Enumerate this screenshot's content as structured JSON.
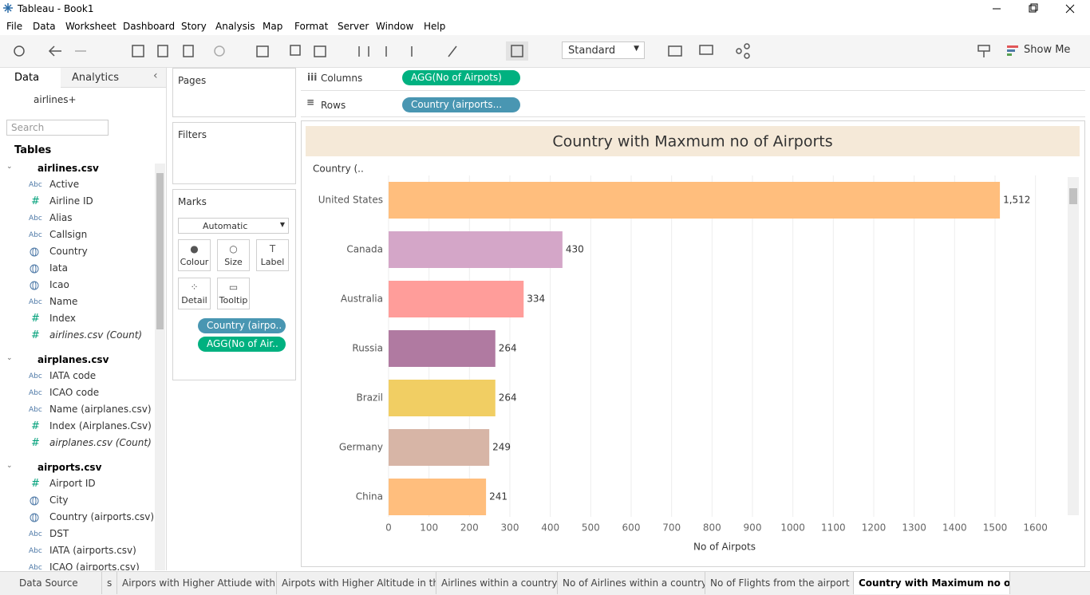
{
  "window": {
    "title": "Tableau - Book1"
  },
  "menu": [
    "File",
    "Data",
    "Worksheet",
    "Dashboard",
    "Story",
    "Analysis",
    "Map",
    "Format",
    "Server",
    "Window",
    "Help"
  ],
  "toolbar": {
    "fit": "Standard",
    "show_me": "Show Me"
  },
  "data_pane": {
    "tabs": [
      "Data",
      "Analytics"
    ],
    "source": "airlines+",
    "search_placeholder": "Search",
    "tables_heading": "Tables",
    "tables": [
      {
        "name": "airlines.csv",
        "fields": [
          {
            "icon": "Abc",
            "name": "Active"
          },
          {
            "icon": "#",
            "name": "Airline ID"
          },
          {
            "icon": "Abc",
            "name": "Alias"
          },
          {
            "icon": "Abc",
            "name": "Callsign"
          },
          {
            "name": "Country"
          },
          {
            "name": "Iata"
          },
          {
            "name": "Icao"
          },
          {
            "icon": "Abc",
            "name": "Name"
          },
          {
            "icon": "#",
            "name": "Index"
          },
          {
            "icon": "#",
            "name": "airlines.csv (Count)",
            "italic": true
          }
        ]
      },
      {
        "name": "airplanes.csv",
        "fields": [
          {
            "icon": "Abc",
            "name": "IATA code"
          },
          {
            "icon": "Abc",
            "name": "ICAO code"
          },
          {
            "icon": "Abc",
            "name": "Name (airplanes.csv)"
          },
          {
            "icon": "#",
            "name": "Index (Airplanes.Csv)"
          },
          {
            "icon": "#",
            "name": "airplanes.csv (Count)",
            "italic": true
          }
        ]
      },
      {
        "name": "airports.csv",
        "fields": [
          {
            "icon": "#",
            "name": "Airport ID"
          },
          {
            "name": "City"
          },
          {
            "name": "Country (airports.csv)"
          },
          {
            "icon": "Abc",
            "name": "DST"
          },
          {
            "icon": "Abc",
            "name": "IATA (airports.csv)"
          },
          {
            "icon": "Abc",
            "name": "ICAO (airports.csv)"
          }
        ]
      }
    ]
  },
  "shelves": {
    "pages": "Pages",
    "filters": "Filters",
    "columns": {
      "label": "Columns",
      "pill": "AGG(No of Airpots)"
    },
    "rows": {
      "label": "Rows",
      "pill": "Country (airports..."
    }
  },
  "marks": {
    "title": "Marks",
    "mark_type": "Automatic",
    "cards": [
      "Colour",
      "Size",
      "Label",
      "Detail",
      "Tooltip"
    ],
    "pills": [
      "Country (airpo..",
      "AGG(No of Air.."
    ]
  },
  "chart_data": {
    "type": "bar",
    "orientation": "horizontal",
    "title": "Country with Maxmum no of Airports",
    "y_header": "Country (..",
    "x_label": "No of Airpots",
    "categories": [
      "United States",
      "Canada",
      "Australia",
      "Russia",
      "Brazil",
      "Germany",
      "China"
    ],
    "values": [
      1512,
      430,
      334,
      264,
      264,
      249,
      241
    ],
    "value_labels": [
      "1,512",
      "430",
      "334",
      "264",
      "264",
      "249",
      "241"
    ],
    "colors": [
      "#ffbe7d",
      "#d4a6c8",
      "#ff9d9a",
      "#b07aa1",
      "#f1ce63",
      "#d7b5a6",
      "#ffbe7d"
    ],
    "xlim": [
      0,
      1650
    ],
    "xticks": [
      0,
      100,
      200,
      300,
      400,
      500,
      600,
      700,
      800,
      900,
      1000,
      1100,
      1200,
      1300,
      1400,
      1500,
      1600
    ],
    "grid": true
  },
  "sheet_tabs": [
    "Data Source",
    "s",
    "Airpors with Higher Attiude withi...",
    "Airpots with Higher Altitude in th...",
    "Airlines within a country",
    "No of Airlines within a country",
    "No of  Flights from the airport",
    "Country with Maximum no of A..."
  ]
}
